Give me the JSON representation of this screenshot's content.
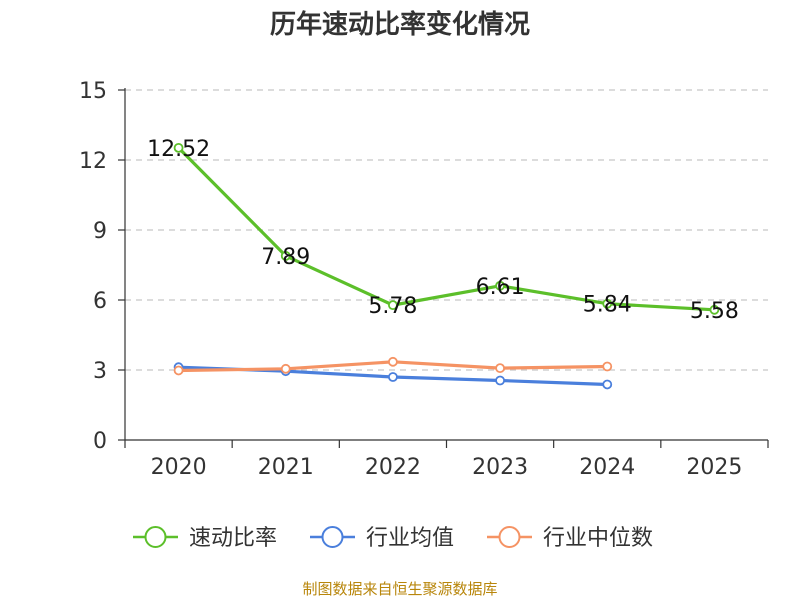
{
  "chart_data": {
    "type": "line",
    "title": "历年速动比率变化情况",
    "categories": [
      "2020",
      "2021",
      "2022",
      "2023",
      "2024",
      "2025"
    ],
    "y_ticks": [
      "0",
      "3",
      "6",
      "9",
      "12",
      "15"
    ],
    "ylim": [
      0,
      15
    ],
    "grid": true,
    "legend_position": "bottom",
    "series": [
      {
        "name": "速动比率",
        "color": "#5cbf2a",
        "values": [
          12.52,
          7.89,
          5.78,
          6.61,
          5.84,
          5.58
        ],
        "labels": [
          "12.52",
          "7.89",
          "5.78",
          "6.61",
          "5.84",
          "5.58"
        ]
      },
      {
        "name": "行业均值",
        "color": "#4a7fdc",
        "values": [
          3.12,
          2.95,
          2.7,
          2.55,
          2.38,
          null
        ]
      },
      {
        "name": "行业中位数",
        "color": "#f59364",
        "values": [
          2.98,
          3.05,
          3.35,
          3.08,
          3.15,
          null
        ]
      }
    ],
    "source": "制图数据来自恒生聚源数据库"
  }
}
